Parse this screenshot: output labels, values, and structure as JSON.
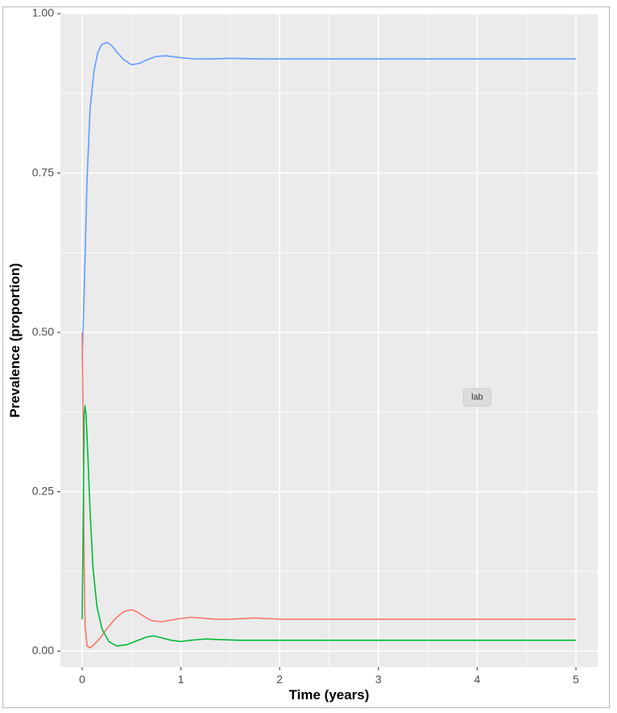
{
  "chart_data": {
    "type": "line",
    "title": "",
    "xlabel": "Time (years)",
    "ylabel": "Prevalence (proportion)",
    "xlim": [
      -0.22,
      5.22
    ],
    "ylim": [
      -0.025,
      1.0
    ],
    "xticks": [
      0,
      1,
      2,
      3,
      4,
      5
    ],
    "xtick_labels": [
      "0",
      "1",
      "2",
      "3",
      "4",
      "5"
    ],
    "yticks": [
      0.0,
      0.25,
      0.5,
      0.75,
      1.0
    ],
    "ytick_labels": [
      "0.00",
      "0.25",
      "0.50",
      "0.75",
      "1.00"
    ],
    "grid": true,
    "legend": "none",
    "annotation": {
      "text": "lab",
      "x": 4.0,
      "y": 0.398
    },
    "colors": {
      "panel": "#ebebeb",
      "grid": "#ffffff",
      "blue": "#619cff",
      "red": "#f8766d",
      "green": "#00ba38"
    },
    "series": [
      {
        "color": "#619cff",
        "x": [
          0,
          0.02,
          0.05,
          0.08,
          0.12,
          0.16,
          0.2,
          0.25,
          0.3,
          0.35,
          0.42,
          0.5,
          0.58,
          0.66,
          0.75,
          0.85,
          1.0,
          1.15,
          1.3,
          1.5,
          1.8,
          2.2,
          3.0,
          4.0,
          5.0
        ],
        "y": [
          0.455,
          0.56,
          0.74,
          0.85,
          0.91,
          0.94,
          0.952,
          0.955,
          0.95,
          0.94,
          0.928,
          0.92,
          0.922,
          0.928,
          0.933,
          0.934,
          0.931,
          0.929,
          0.929,
          0.93,
          0.929,
          0.929,
          0.929,
          0.929,
          0.929
        ]
      },
      {
        "color": "#f8766d",
        "x": [
          0,
          0.01,
          0.02,
          0.03,
          0.05,
          0.08,
          0.12,
          0.18,
          0.25,
          0.33,
          0.42,
          0.5,
          0.55,
          0.62,
          0.7,
          0.8,
          0.95,
          1.1,
          1.2,
          1.35,
          1.5,
          1.75,
          2.0,
          3.0,
          4.0,
          5.0
        ],
        "y": [
          0.5,
          0.35,
          0.14,
          0.04,
          0.008,
          0.005,
          0.01,
          0.02,
          0.035,
          0.05,
          0.062,
          0.065,
          0.062,
          0.055,
          0.048,
          0.046,
          0.05,
          0.053,
          0.052,
          0.05,
          0.05,
          0.052,
          0.05,
          0.05,
          0.05,
          0.05
        ]
      },
      {
        "color": "#00ba38",
        "x": [
          0,
          0.01,
          0.02,
          0.03,
          0.04,
          0.06,
          0.08,
          0.11,
          0.15,
          0.2,
          0.27,
          0.35,
          0.45,
          0.55,
          0.65,
          0.72,
          0.8,
          0.9,
          1.0,
          1.1,
          1.25,
          1.4,
          1.6,
          2.0,
          3.0,
          4.0,
          5.0
        ],
        "y": [
          0.05,
          0.2,
          0.37,
          0.385,
          0.37,
          0.3,
          0.22,
          0.13,
          0.07,
          0.035,
          0.015,
          0.008,
          0.01,
          0.016,
          0.022,
          0.024,
          0.021,
          0.017,
          0.015,
          0.017,
          0.019,
          0.018,
          0.017,
          0.017,
          0.017,
          0.017,
          0.017
        ]
      }
    ]
  }
}
